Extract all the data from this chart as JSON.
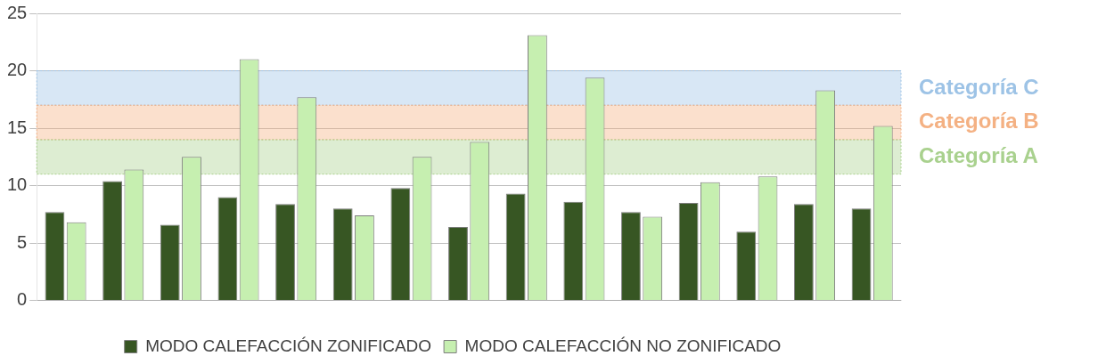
{
  "chart_data": {
    "type": "bar",
    "categories": [
      null,
      null,
      null,
      null,
      null,
      null,
      null,
      null,
      null,
      null,
      null,
      null,
      null,
      null,
      null
    ],
    "series": [
      {
        "name": "MODO CALEFACCIÓN ZONIFICADO",
        "color": "#375623",
        "values": [
          7.7,
          10.4,
          6.6,
          9.0,
          8.4,
          8.0,
          9.8,
          6.4,
          9.3,
          8.6,
          7.7,
          8.5,
          6.0,
          8.4,
          8.0
        ]
      },
      {
        "name": "MODO CALEFACCIÓN NO ZONIFICADO",
        "color": "#c6efb0",
        "values": [
          6.8,
          11.4,
          12.5,
          21.0,
          17.7,
          7.4,
          12.5,
          13.8,
          23.1,
          19.4,
          7.3,
          10.3,
          10.8,
          18.3,
          15.2
        ]
      }
    ],
    "ylim": [
      0,
      25
    ],
    "yticks": [
      0,
      5,
      10,
      15,
      20,
      25
    ],
    "grid": "y",
    "legend": "bottom",
    "bands": [
      {
        "axis": "y",
        "from": 17,
        "to": 20,
        "label": "Categoría C",
        "color": "#9dc3e6"
      },
      {
        "axis": "y",
        "from": 14,
        "to": 17,
        "label": "Categoría B",
        "color": "#f4b183"
      },
      {
        "axis": "y",
        "from": 11,
        "to": 14,
        "label": "Categoría A",
        "color": "#a9d18e"
      }
    ]
  }
}
